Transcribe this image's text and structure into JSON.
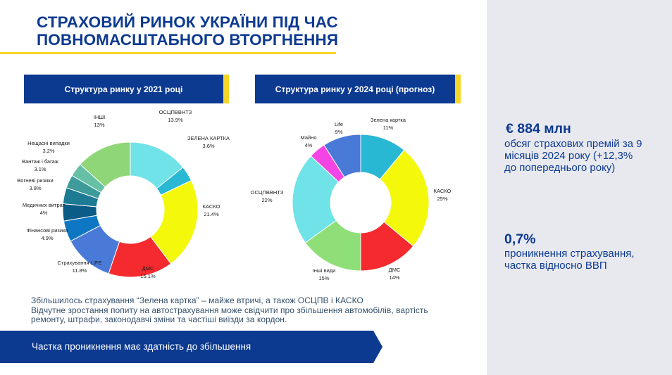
{
  "page": {
    "title_line1": "СТРАХОВИЙ РИНОК УКРАЇНИ ПІД ЧАС",
    "title_line2": "ПОВНОМАСШТАБНОГО ВТОРГНЕННЯ"
  },
  "colors": {
    "brand_blue": "#0c3a91",
    "accent_yellow": "#f5d52a",
    "panel_bg": "#e8e9ef"
  },
  "stats": {
    "premiums_value": "€ 884 млн",
    "premiums_desc": [
      "обсяг страхових премій за 9",
      "місяців 2024 року (+12,3%",
      "до попереднього року)"
    ],
    "penetration_value": "0,7%",
    "penetration_desc": [
      "проникнення страхування,",
      "частка відносно ВВП"
    ]
  },
  "chart_data": [
    {
      "type": "pie",
      "title": "Структура ринку у 2021 році",
      "series": [
        {
          "name": "ОСЦПВВНТЗ",
          "value": 13.9,
          "label": "13.9%",
          "color": "#6fe3e8"
        },
        {
          "name": "ЗЕЛЕНА КАРТКА",
          "value": 3.6,
          "label": "3.6%",
          "color": "#28b8d4"
        },
        {
          "name": "КАСКО",
          "value": 21.4,
          "label": "21.4%",
          "color": "#f4f90b"
        },
        {
          "name": "ДМС",
          "value": 15.1,
          "label": "15.1%",
          "color": "#f42a2e"
        },
        {
          "name": "Страхування LIFE",
          "value": 11.8,
          "label": "11.8%",
          "color": "#4a7ad8"
        },
        {
          "name": "Фінансові ризики",
          "value": 4.9,
          "label": "4.9%",
          "color": "#0e77c4"
        },
        {
          "name": "Медичних витрат",
          "value": 4,
          "label": "4%",
          "color": "#0b5c86"
        },
        {
          "name": "Вогневі ризики",
          "value": 3.8,
          "label": "3.8%",
          "color": "#1d7a93"
        },
        {
          "name": "Вантаж і багаж",
          "value": 3.1,
          "label": "3.1%",
          "color": "#3d9c9a"
        },
        {
          "name": "Нещасні випадки",
          "value": 3.2,
          "label": "3.2%",
          "color": "#66c0a6"
        },
        {
          "name": "ІНШІ",
          "value": 13,
          "label": "13%",
          "color": "#8fd678"
        }
      ]
    },
    {
      "type": "pie",
      "title": "Структура ринку у 2024 році  (прогноз)",
      "series": [
        {
          "name": "Зелена картка",
          "value": 11,
          "label": "11%",
          "color": "#28b8d4"
        },
        {
          "name": "КАСКО",
          "value": 25,
          "label": "25%",
          "color": "#f4f90b"
        },
        {
          "name": "ДМС",
          "value": 14,
          "label": "14%",
          "color": "#f42a2e"
        },
        {
          "name": "Інші види",
          "value": 15,
          "label": "15%",
          "color": "#8fdf78"
        },
        {
          "name": "ОСЦПВВНТЗ",
          "value": 22,
          "label": "22%",
          "color": "#6fe3e8"
        },
        {
          "name": "Майно",
          "value": 4,
          "label": "4%",
          "color": "#f445e4"
        },
        {
          "name": "Life",
          "value": 9,
          "label": "9%",
          "color": "#4a7ad8"
        }
      ]
    }
  ],
  "notes": {
    "line1": "Збільшилось страхування “Зелена картка” – майже втричі, а також ОСЦПВ і КАСКО",
    "line2": "Відчутне зростання попиту на автострахування може свідчити про збільшення автомобілів, вартість",
    "line3": "ремонту, штрафи, законодавчі зміни та частіші виїзди за кордон."
  },
  "footer": {
    "text": "Частка проникнення має здатність до збільшення"
  }
}
